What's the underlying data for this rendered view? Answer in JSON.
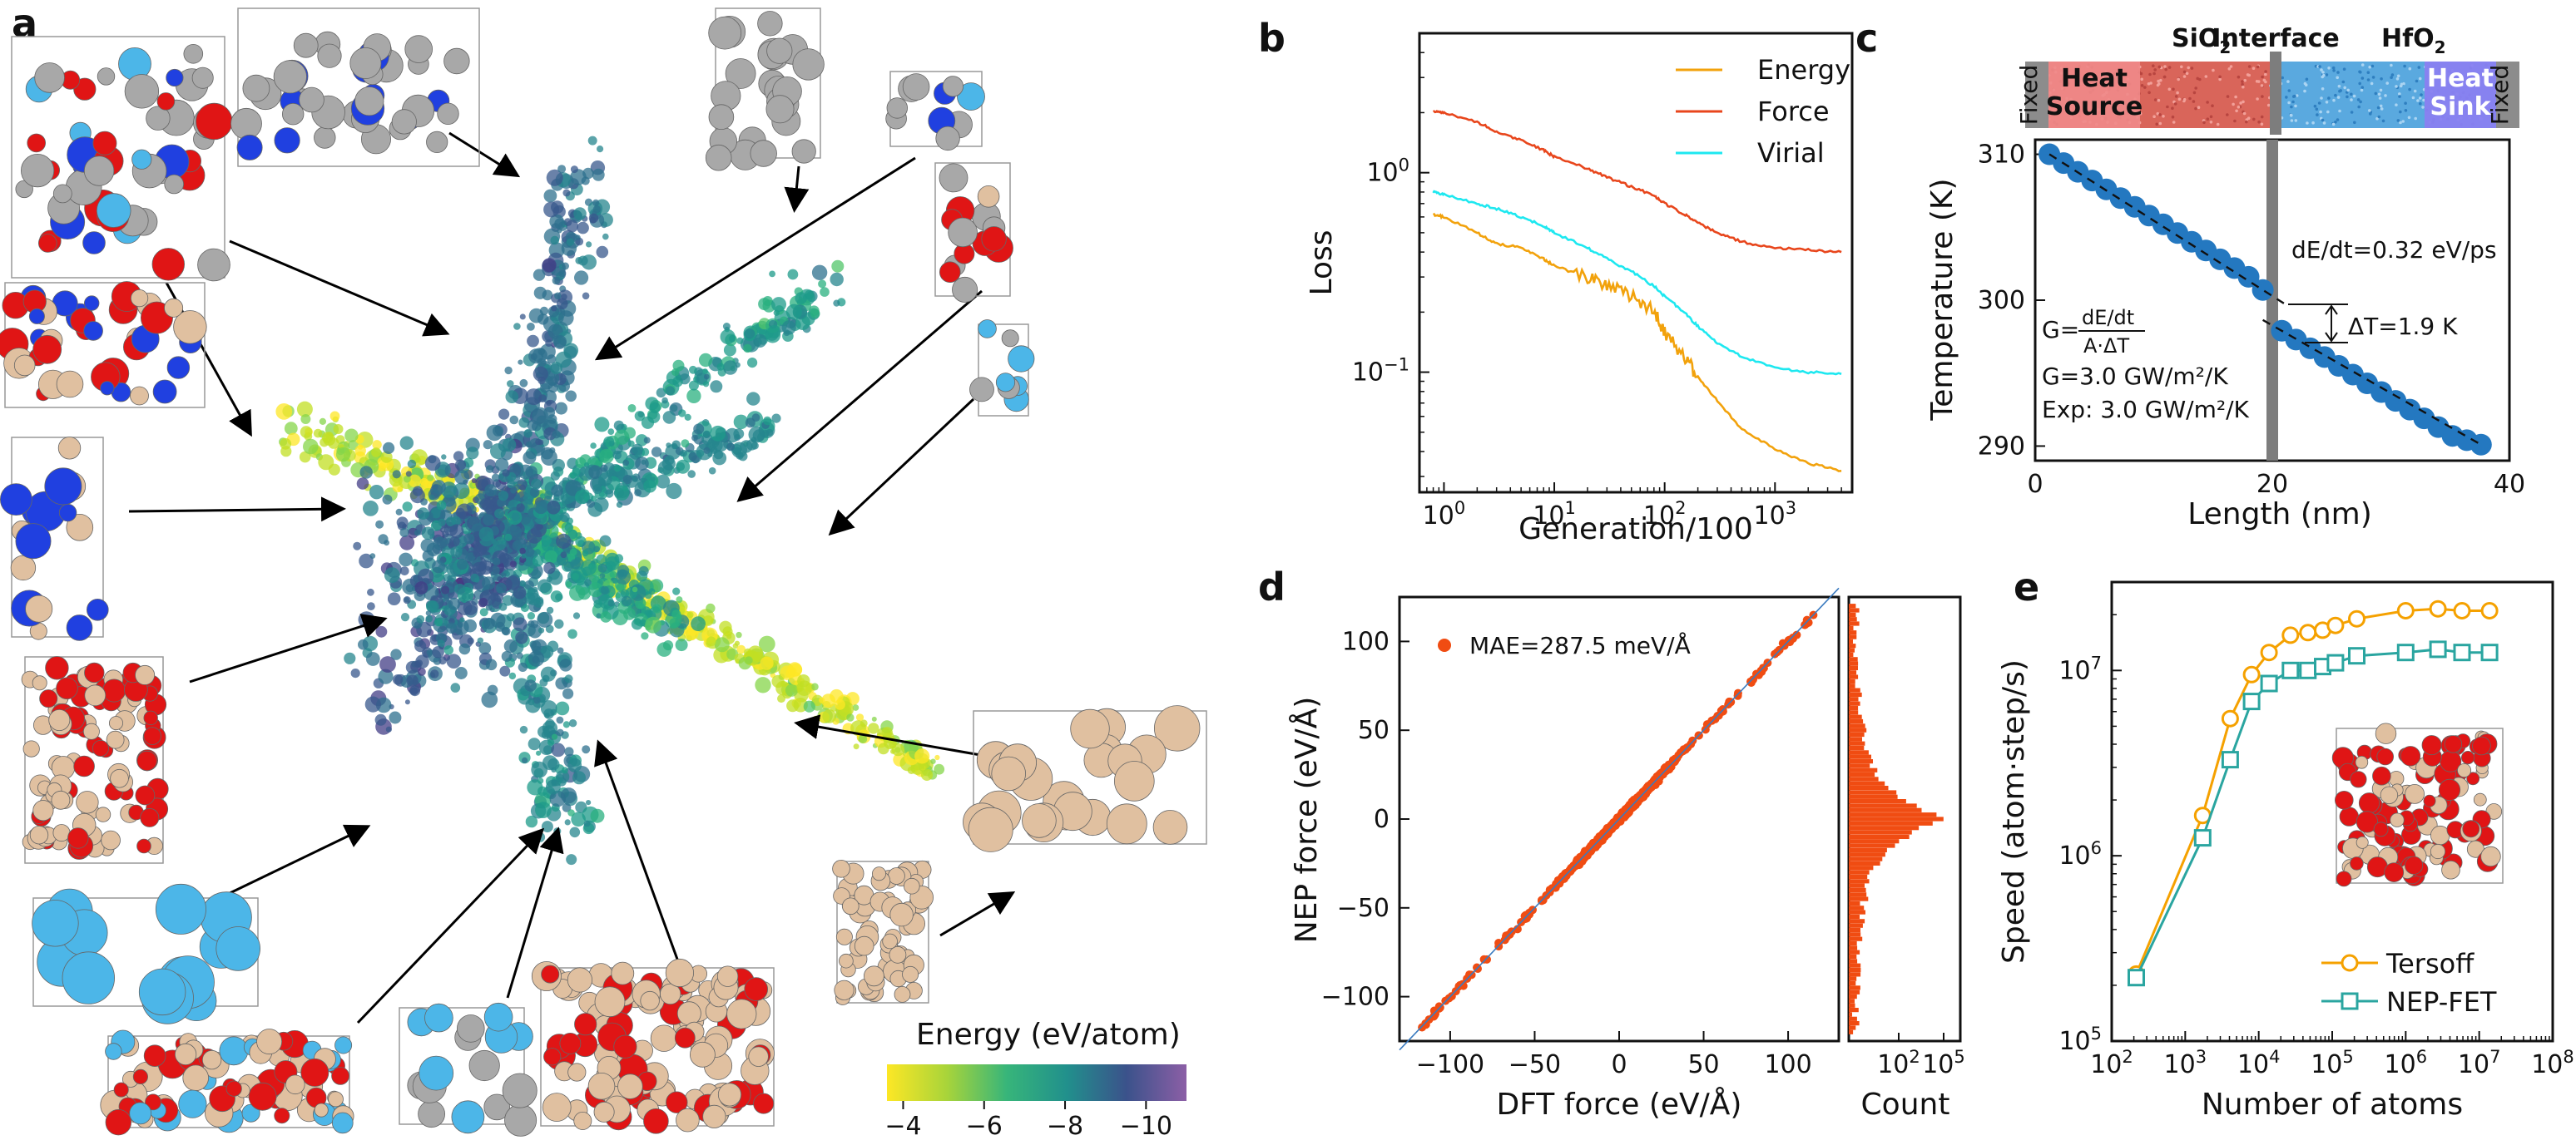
{
  "panel_labels": [
    "a",
    "b",
    "c",
    "d",
    "e"
  ],
  "colors": {
    "energy": "#f2a20c",
    "force": "#e8461c",
    "virial": "#1ee8f0",
    "temp_points": "#2478c0",
    "interface_band": "#7d7d7d",
    "scatter_d": "#f04c12",
    "tersoff": "#f5a100",
    "nepfet": "#2aa5a0",
    "sio2": "#e96156",
    "hfo2": "#5aa9df",
    "heat_source": "#f08a8a",
    "heat_sink": "#8a7ff0",
    "fixed": "#8c8c8c"
  },
  "chart_data": [
    {
      "id": "a",
      "type": "scatter",
      "title": "",
      "colorbar": {
        "label": "Energy (eV/atom)",
        "ticks": [
          "-4",
          "-6",
          "-8",
          "-10"
        ],
        "range": [
          -3.6,
          -11
        ],
        "colormap": "viridis"
      }
    },
    {
      "id": "b",
      "type": "line",
      "xlabel": "Generation/100",
      "ylabel": "Loss",
      "xscale": "log",
      "yscale": "log",
      "xlim": [
        0.6,
        5000
      ],
      "ylim": [
        0.025,
        5
      ],
      "xticks": [
        {
          "label": "10",
          "exp": "0",
          "value": 1
        },
        {
          "label": "10",
          "exp": "1",
          "value": 10
        },
        {
          "label": "10",
          "exp": "2",
          "value": 100
        },
        {
          "label": "10",
          "exp": "3",
          "value": 1000
        }
      ],
      "yticks": [
        {
          "label": "10",
          "exp": "−1",
          "value": 0.1
        },
        {
          "label": "10",
          "exp": "0",
          "value": 1
        }
      ],
      "legend": "top-right",
      "x": [
        0.8,
        1,
        2,
        3,
        5,
        8,
        10,
        20,
        30,
        50,
        80,
        100,
        150,
        200,
        300,
        500,
        1000,
        2000,
        4000
      ],
      "series": [
        {
          "name": "Energy",
          "values": [
            0.62,
            0.6,
            0.5,
            0.44,
            0.42,
            0.37,
            0.34,
            0.3,
            0.27,
            0.24,
            0.2,
            0.16,
            0.12,
            0.095,
            0.072,
            0.052,
            0.041,
            0.035,
            0.032
          ]
        },
        {
          "name": "Force",
          "values": [
            2.02,
            2.0,
            1.8,
            1.6,
            1.45,
            1.3,
            1.2,
            1.05,
            0.95,
            0.85,
            0.77,
            0.7,
            0.62,
            0.56,
            0.5,
            0.45,
            0.42,
            0.41,
            0.4
          ]
        },
        {
          "name": "Virial",
          "values": [
            0.8,
            0.78,
            0.7,
            0.66,
            0.6,
            0.54,
            0.5,
            0.42,
            0.37,
            0.32,
            0.27,
            0.24,
            0.2,
            0.17,
            0.14,
            0.12,
            0.105,
            0.1,
            0.098
          ]
        }
      ]
    },
    {
      "id": "c",
      "type": "scatter",
      "xlabel": "Length (nm)",
      "ylabel": "Temperature (K)",
      "xlim": [
        0,
        40
      ],
      "ylim": [
        289,
        311
      ],
      "xticks": [
        0,
        20,
        40
      ],
      "yticks": [
        290,
        300,
        310
      ],
      "x": [
        1.2,
        2.4,
        3.6,
        4.8,
        6.0,
        7.2,
        8.4,
        9.6,
        10.8,
        12.0,
        13.2,
        14.4,
        15.6,
        16.8,
        18.0,
        19.2,
        20.8,
        22.0,
        23.2,
        24.4,
        25.6,
        26.8,
        28.0,
        29.2,
        30.4,
        31.6,
        32.8,
        34.0,
        35.2,
        36.4,
        37.6
      ],
      "y": [
        310.0,
        309.4,
        308.8,
        308.2,
        307.6,
        307.0,
        306.4,
        305.8,
        305.2,
        304.6,
        304.0,
        303.4,
        302.8,
        302.2,
        301.6,
        300.7,
        297.9,
        297.3,
        296.7,
        296.1,
        295.5,
        294.9,
        294.3,
        293.7,
        293.1,
        292.5,
        291.9,
        291.3,
        290.7,
        290.4,
        290.1
      ],
      "interface_x": 20,
      "annotations": {
        "rate": "dE/dt=0.32 eV/ps",
        "delta_t": "ΔT=1.9 K",
        "g_formula_prefix": "G=",
        "g_numerator": "dE/dt",
        "g_denominator": "A·ΔT",
        "g_value": "G=3.0 GW/m²/K",
        "g_exp": "Exp: 3.0 GW/m²/K"
      },
      "schematic": {
        "sio2_label": "SiO",
        "sio2_sub": "2",
        "interface_label": "Interface",
        "hfo2_label": "HfO",
        "hfo2_sub": "2",
        "fixed_label": "Fixed",
        "heat_source_line1": "Heat",
        "heat_source_line2": "Source",
        "heat_sink_line1": "Heat",
        "heat_sink_line2": "Sink"
      }
    },
    {
      "id": "d",
      "type": "scatter",
      "xlabel": "DFT force (eV/Å)",
      "ylabel": "NEP force (eV/Å)",
      "xlim": [
        -130,
        130
      ],
      "ylim": [
        -125,
        125
      ],
      "xticks": [
        -100,
        -50,
        0,
        50,
        100
      ],
      "yticks": [
        -100,
        -50,
        0,
        50,
        100
      ],
      "legend_label": "MAE=287.5 meV/Å",
      "histogram": {
        "xlabel": "Count",
        "xticks": [
          {
            "label": "10",
            "exp": "2"
          },
          {
            "label": "10",
            "exp": "5"
          }
        ]
      }
    },
    {
      "id": "e",
      "type": "line",
      "xlabel": "Number of atoms",
      "ylabel": "Speed (atom·step/s)",
      "xscale": "log",
      "yscale": "log",
      "xlim": [
        100,
        100000000
      ],
      "ylim": [
        100000,
        30000000
      ],
      "xticks": [
        {
          "label": "10",
          "exp": "2"
        },
        {
          "label": "10",
          "exp": "3"
        },
        {
          "label": "10",
          "exp": "4"
        },
        {
          "label": "10",
          "exp": "5"
        },
        {
          "label": "10",
          "exp": "6"
        },
        {
          "label": "10",
          "exp": "7"
        },
        {
          "label": "10",
          "exp": "8"
        }
      ],
      "yticks": [
        {
          "label": "10",
          "exp": "5"
        },
        {
          "label": "10",
          "exp": "6"
        },
        {
          "label": "10",
          "exp": "7"
        }
      ],
      "legend": "bottom-right",
      "x": [
        216,
        1728,
        4096,
        8000,
        13824,
        27000,
        46656,
        74088,
        110592,
        216000,
        1000000,
        2744000,
        5832000,
        13824000
      ],
      "series": [
        {
          "name": "Tersoff",
          "values": [
            230000,
            1650000,
            5500000,
            9500000,
            12500000,
            15500000,
            16000000,
            16500000,
            17500000,
            19000000,
            21000000,
            21500000,
            21000000,
            21000000
          ]
        },
        {
          "name": "NEP-FET",
          "values": [
            220000,
            1250000,
            3300000,
            6800000,
            8500000,
            10000000,
            10000000,
            10500000,
            11000000,
            12000000,
            12500000,
            13000000,
            12500000,
            12500000
          ]
        }
      ]
    }
  ]
}
